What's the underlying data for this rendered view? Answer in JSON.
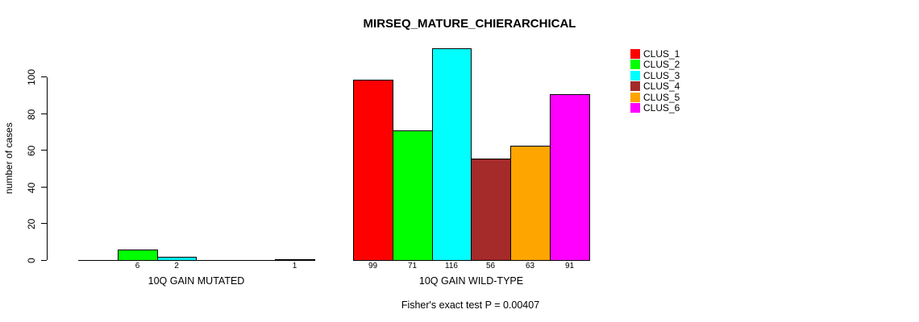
{
  "chart_data": {
    "type": "bar",
    "title": "MIRSEQ_MATURE_CHIERARCHICAL",
    "ylabel": "number of cases",
    "xlabel": "",
    "footer": "Fisher's exact test P = 0.00407",
    "categories": [
      "10Q GAIN MUTATED",
      "10Q GAIN WILD-TYPE"
    ],
    "series": [
      {
        "name": "CLUS_1",
        "color": "#FF0000",
        "values": [
          0,
          99
        ]
      },
      {
        "name": "CLUS_2",
        "color": "#00FF00",
        "values": [
          6,
          71
        ]
      },
      {
        "name": "CLUS_3",
        "color": "#00FFFF",
        "values": [
          2,
          116
        ]
      },
      {
        "name": "CLUS_4",
        "color": "#A52A2A",
        "values": [
          0,
          56
        ]
      },
      {
        "name": "CLUS_5",
        "color": "#FFA500",
        "values": [
          0,
          63
        ]
      },
      {
        "name": "CLUS_6",
        "color": "#FF00FF",
        "values": [
          1,
          91
        ]
      }
    ],
    "value_labels": [
      [
        "",
        "6",
        "2",
        "",
        "",
        "1"
      ],
      [
        "99",
        "71",
        "116",
        "56",
        "63",
        "91"
      ]
    ],
    "yticks": [
      0,
      20,
      40,
      60,
      80,
      100
    ],
    "ylim": [
      0,
      116
    ],
    "grid": false,
    "legend_position": "right",
    "legend_entries": [
      "CLUS_1",
      "CLUS_2",
      "CLUS_3",
      "CLUS_4",
      "CLUS_5",
      "CLUS_6"
    ],
    "background_color": "#FFFFFF",
    "bar_border_color": "#000000"
  }
}
